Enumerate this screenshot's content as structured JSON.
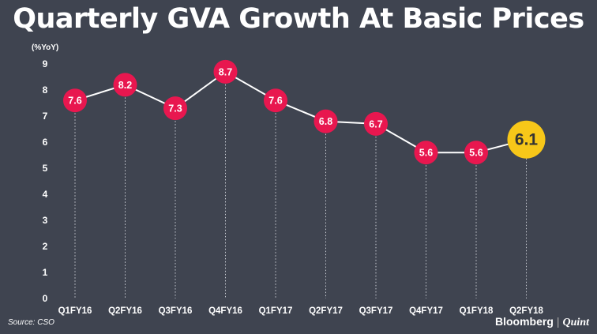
{
  "chart_data": {
    "type": "line",
    "title": "Quarterly GVA Growth At Basic Prices",
    "ylabel": "(%YoY)",
    "xlabel": "",
    "ylim": [
      0,
      9
    ],
    "yticks": [
      "0",
      "1",
      "2",
      "3",
      "4",
      "5",
      "6",
      "7",
      "8",
      "9"
    ],
    "categories": [
      "Q1FY16",
      "Q2FY16",
      "Q3FY16",
      "Q4FY16",
      "Q1FY17",
      "Q2FY17",
      "Q3FY17",
      "Q4FY17",
      "Q1FY18",
      "Q2FY18"
    ],
    "values": [
      7.6,
      8.2,
      7.3,
      8.7,
      7.6,
      6.8,
      6.7,
      5.6,
      5.6,
      6.1
    ],
    "labels": [
      "7.6",
      "8.2",
      "7.3",
      "8.7",
      "7.6",
      "6.8",
      "6.7",
      "5.6",
      "5.6",
      "6.1"
    ],
    "highlight_index": 9
  },
  "footer": {
    "source": "Source: CSO",
    "brand_1": "Bloomberg",
    "brand_sep": "|",
    "brand_2": "Quint"
  },
  "colors": {
    "background": "#3f4450",
    "marker": "#e8174f",
    "marker_highlight": "#f7c719",
    "line": "#ffffff"
  }
}
